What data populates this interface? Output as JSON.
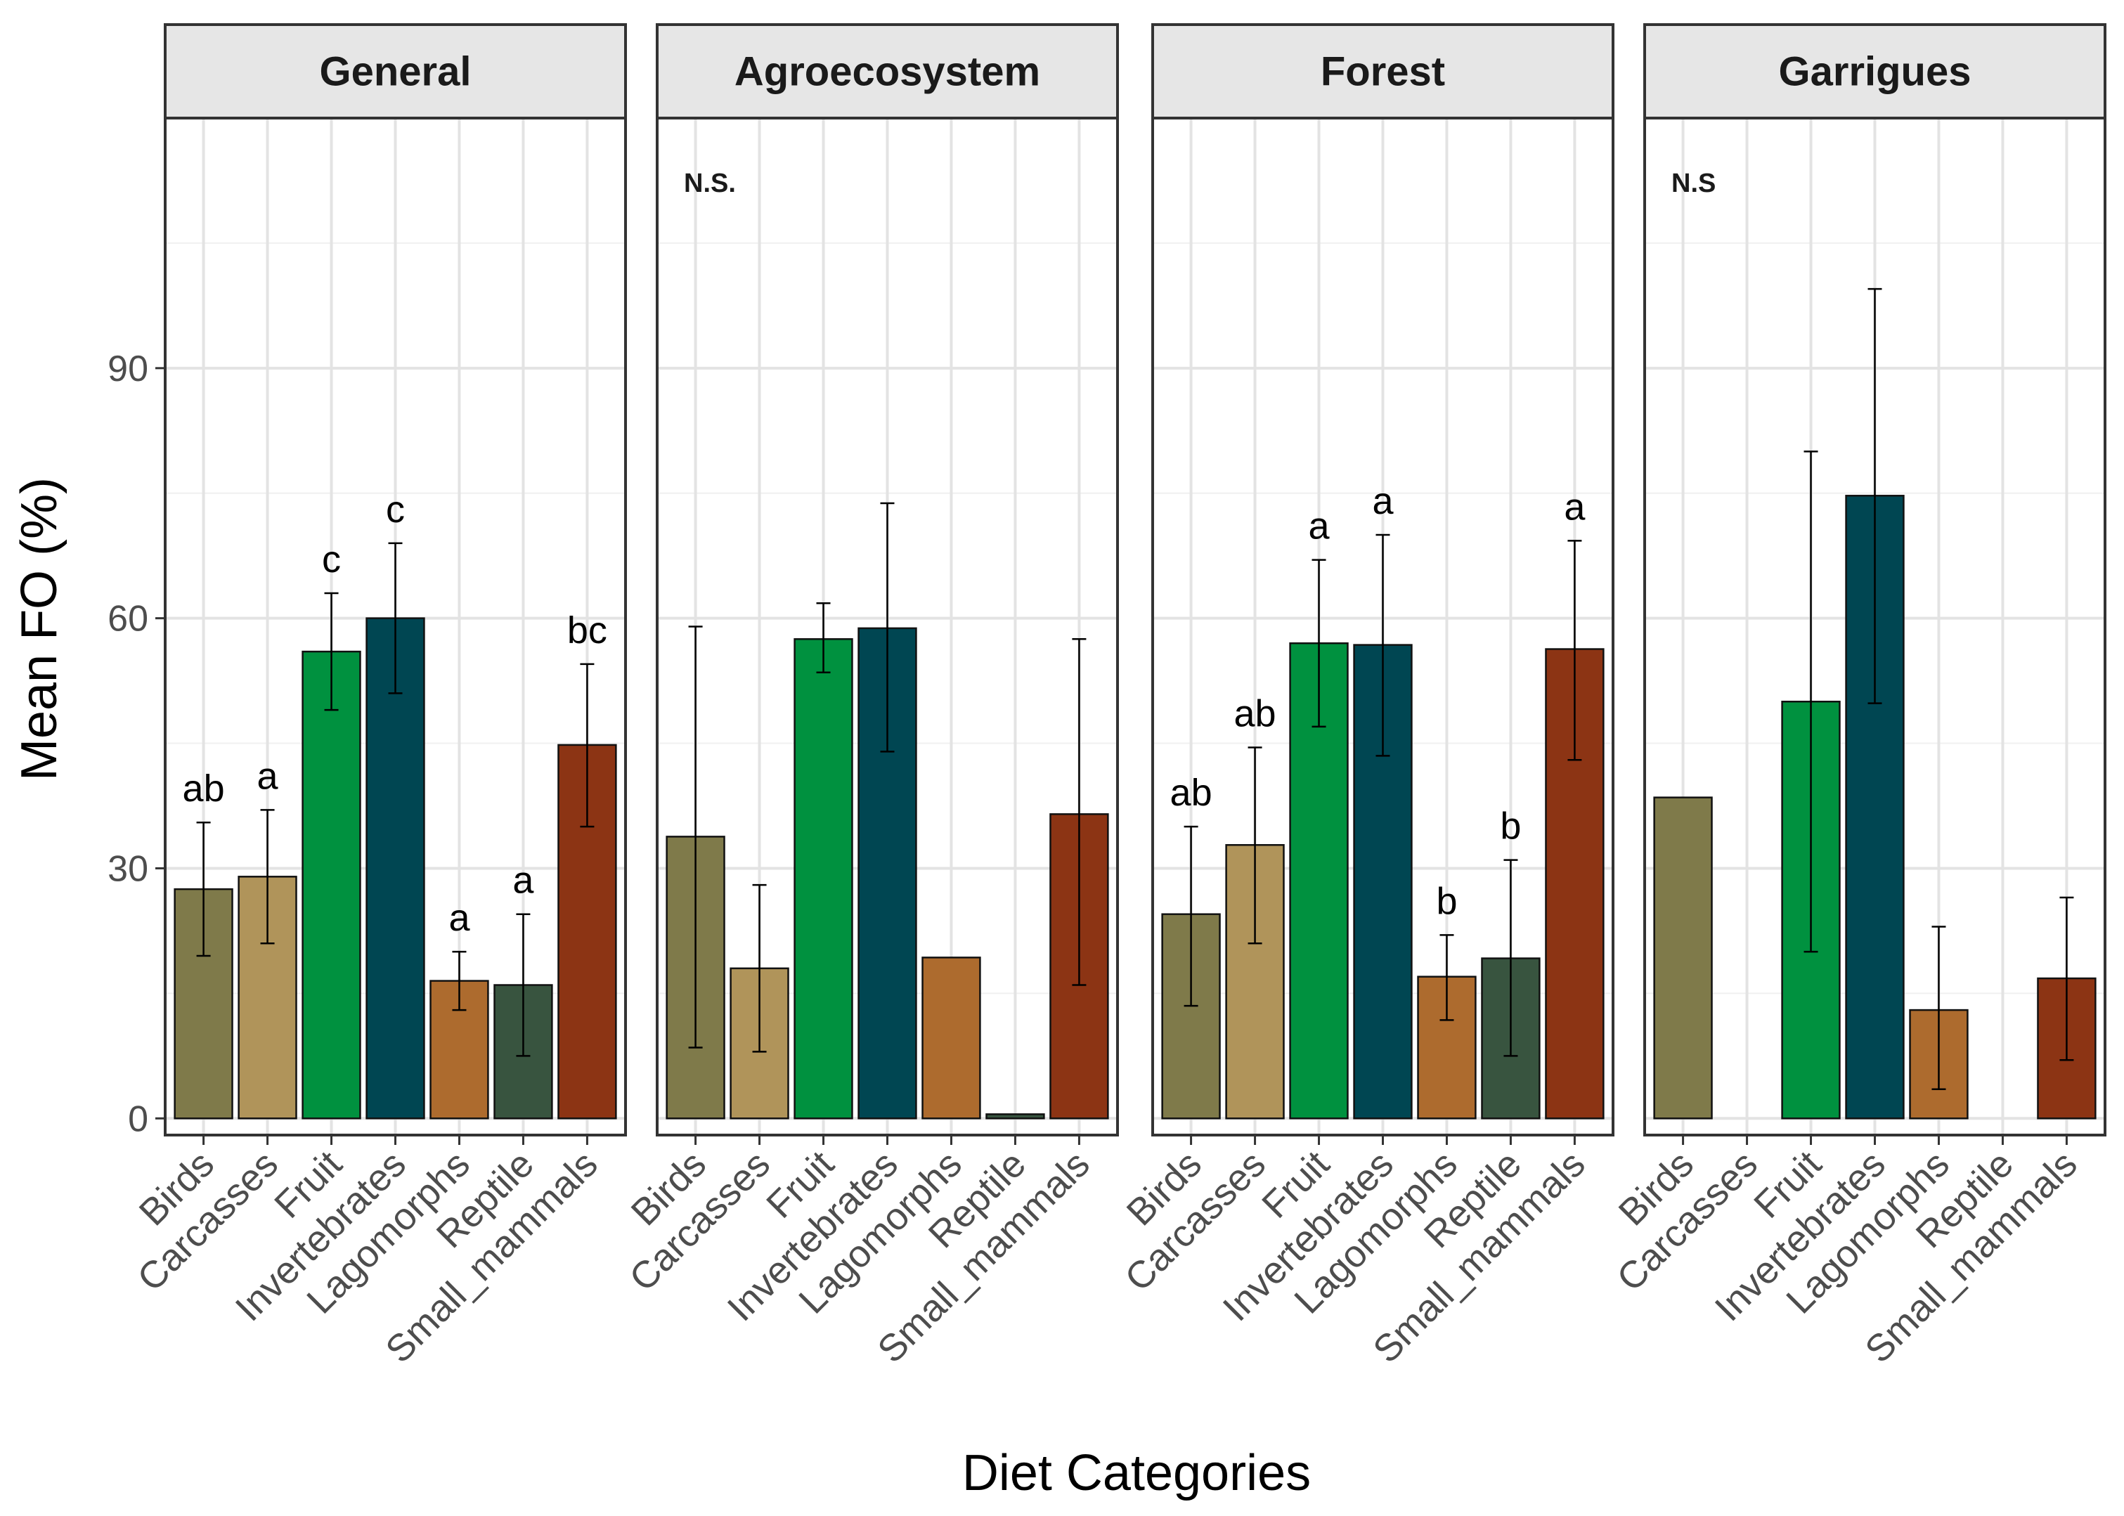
{
  "chart_data": {
    "type": "bar",
    "xlabel": "Diet Categories",
    "ylabel": "Mean FO (%)",
    "ylim": [
      -2,
      120
    ],
    "yticks": [
      0,
      30,
      60,
      90
    ],
    "categories": [
      "Birds",
      "Carcasses",
      "Fruit",
      "Invertebrates",
      "Lagomorphs",
      "Reptile",
      "Small_mammals"
    ],
    "colors": [
      "#7f7a4a",
      "#b0945a",
      "#00913f",
      "#004652",
      "#ad6b2e",
      "#38543f",
      "#8c3414"
    ],
    "panels": [
      {
        "title": "General",
        "annotation": "",
        "values": [
          27.5,
          29.0,
          56.0,
          60.0,
          16.5,
          16.0,
          44.8
        ],
        "err_low": [
          19.5,
          21.0,
          49.0,
          51.0,
          13.0,
          7.5,
          35.0
        ],
        "err_high": [
          35.5,
          37.0,
          63.0,
          69.0,
          20.0,
          24.5,
          54.5
        ],
        "letters": [
          "ab",
          "a",
          "c",
          "c",
          "a",
          "a",
          "bc"
        ]
      },
      {
        "title": "Agroecosystem",
        "annotation": "N.S.",
        "values": [
          33.8,
          18.0,
          57.5,
          58.8,
          19.3,
          0.5,
          36.5
        ],
        "err_low": [
          8.5,
          8.0,
          53.5,
          44.0,
          null,
          null,
          16.0
        ],
        "err_high": [
          59.0,
          28.0,
          61.8,
          73.8,
          null,
          null,
          57.5
        ],
        "letters": [
          "",
          "",
          "",
          "",
          "",
          "",
          ""
        ]
      },
      {
        "title": "Forest",
        "annotation": "",
        "values": [
          24.5,
          32.8,
          57.0,
          56.8,
          17.0,
          19.2,
          56.3
        ],
        "err_low": [
          13.5,
          21.0,
          47.0,
          43.5,
          11.8,
          7.5,
          43.0
        ],
        "err_high": [
          35.0,
          44.5,
          67.0,
          70.0,
          22.0,
          31.0,
          69.3
        ],
        "letters": [
          "ab",
          "ab",
          "a",
          "a",
          "b",
          "b",
          "a"
        ]
      },
      {
        "title": "Garrigues",
        "annotation": "N.S",
        "values": [
          38.5,
          null,
          50.0,
          74.7,
          13.0,
          null,
          16.8
        ],
        "err_low": [
          null,
          null,
          20.0,
          49.8,
          3.5,
          null,
          7.0
        ],
        "err_high": [
          null,
          null,
          80.0,
          99.5,
          23.0,
          null,
          26.5
        ],
        "letters": [
          "",
          "",
          "",
          "",
          "",
          "",
          ""
        ]
      }
    ]
  }
}
